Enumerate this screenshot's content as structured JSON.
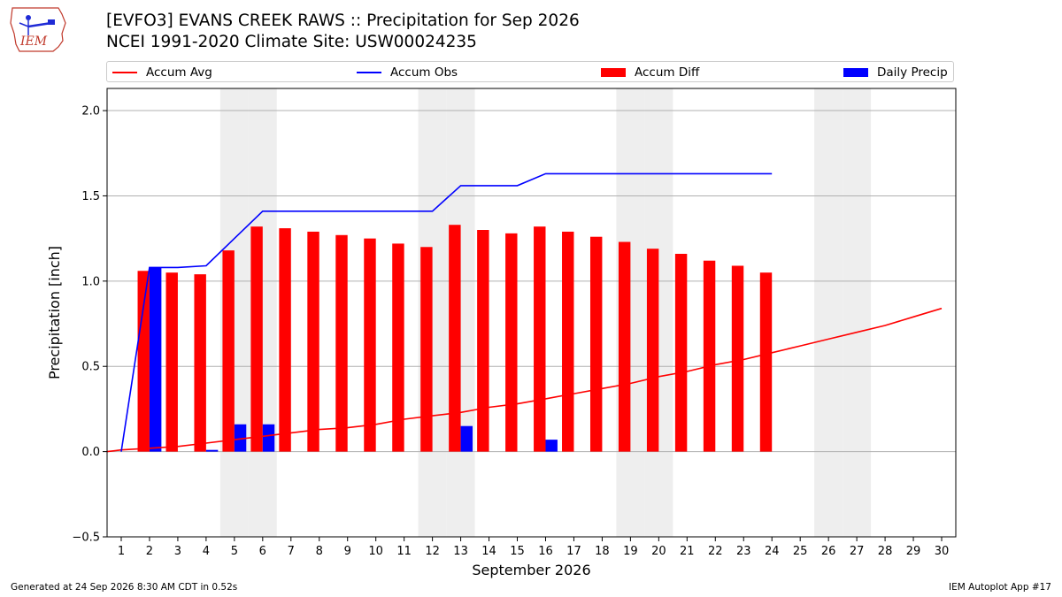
{
  "header": {
    "title_line1": "[EVFO3] EVANS CREEK RAWS :: Precipitation for Sep 2026",
    "title_line2": "NCEI 1991-2020 Climate Site: USW00024235",
    "logo_text": "IEM"
  },
  "legend": {
    "accum_avg": "Accum Avg",
    "accum_obs": "Accum Obs",
    "accum_diff": "Accum Diff",
    "daily_precip": "Daily Precip"
  },
  "colors": {
    "accum_avg": "#ff0000",
    "accum_obs": "#0000ff",
    "accum_diff": "#ff0000",
    "daily_precip": "#0000ff",
    "weekend_shade": "#eeeeee",
    "grid": "#b0b0b0"
  },
  "chart_data": {
    "type": "bar",
    "title": "[EVFO3] EVANS CREEK RAWS :: Precipitation for Sep 2026",
    "subtitle": "NCEI 1991-2020 Climate Site: USW00024235",
    "xlabel": "September 2026",
    "ylabel": "Precipitation [inch]",
    "ylim": [
      -0.5,
      2.13
    ],
    "xlim": [
      0.5,
      30.5
    ],
    "yticks": [
      -0.5,
      0.0,
      0.5,
      1.0,
      1.5,
      2.0
    ],
    "ytick_labels": [
      "−0.5",
      "0.0",
      "0.5",
      "1.0",
      "1.5",
      "2.0"
    ],
    "days": [
      1,
      2,
      3,
      4,
      5,
      6,
      7,
      8,
      9,
      10,
      11,
      12,
      13,
      14,
      15,
      16,
      17,
      18,
      19,
      20,
      21,
      22,
      23,
      24,
      25,
      26,
      27,
      28,
      29,
      30
    ],
    "grid": "horizontal",
    "legend_position": "top",
    "shaded_weekend_days": [
      5,
      6,
      12,
      13,
      19,
      20,
      26,
      27
    ],
    "series": [
      {
        "name": "Accum Avg",
        "type": "line",
        "x": [
          0.5,
          1,
          2,
          3,
          4,
          5,
          6,
          7,
          8,
          9,
          10,
          11,
          12,
          13,
          14,
          15,
          16,
          17,
          18,
          19,
          20,
          21,
          22,
          23,
          24,
          25,
          26,
          27,
          28,
          29,
          30
        ],
        "values": [
          0.0,
          0.01,
          0.02,
          0.03,
          0.05,
          0.07,
          0.09,
          0.11,
          0.13,
          0.14,
          0.16,
          0.19,
          0.21,
          0.23,
          0.26,
          0.28,
          0.31,
          0.34,
          0.37,
          0.4,
          0.44,
          0.47,
          0.51,
          0.54,
          0.58,
          0.62,
          0.66,
          0.7,
          0.74,
          0.79,
          0.84
        ]
      },
      {
        "name": "Accum Obs",
        "type": "line",
        "x": [
          1,
          2,
          3,
          4,
          5,
          6,
          7,
          8,
          9,
          10,
          11,
          12,
          13,
          14,
          15,
          16,
          17,
          18,
          19,
          20,
          21,
          22,
          23,
          24
        ],
        "values": [
          0.0,
          1.08,
          1.08,
          1.09,
          1.25,
          1.41,
          1.41,
          1.41,
          1.41,
          1.41,
          1.41,
          1.41,
          1.56,
          1.56,
          1.56,
          1.63,
          1.63,
          1.63,
          1.63,
          1.63,
          1.63,
          1.63,
          1.63,
          1.63
        ]
      },
      {
        "name": "Accum Diff",
        "type": "bar",
        "x": [
          2,
          3,
          4,
          5,
          6,
          7,
          8,
          9,
          10,
          11,
          12,
          13,
          14,
          15,
          16,
          17,
          18,
          19,
          20,
          21,
          22,
          23,
          24
        ],
        "values": [
          1.06,
          1.05,
          1.04,
          1.18,
          1.32,
          1.31,
          1.29,
          1.27,
          1.25,
          1.22,
          1.2,
          1.33,
          1.3,
          1.28,
          1.32,
          1.29,
          1.26,
          1.23,
          1.19,
          1.16,
          1.12,
          1.09,
          1.05
        ]
      },
      {
        "name": "Daily Precip",
        "type": "bar",
        "x": [
          2,
          4,
          5,
          6,
          13,
          16
        ],
        "values": [
          1.08,
          0.01,
          0.16,
          0.16,
          0.15,
          0.07
        ]
      }
    ]
  },
  "footer": {
    "generated": "Generated at 24 Sep 2026 8:30 AM CDT in 0.52s",
    "app": "IEM Autoplot App #17"
  }
}
